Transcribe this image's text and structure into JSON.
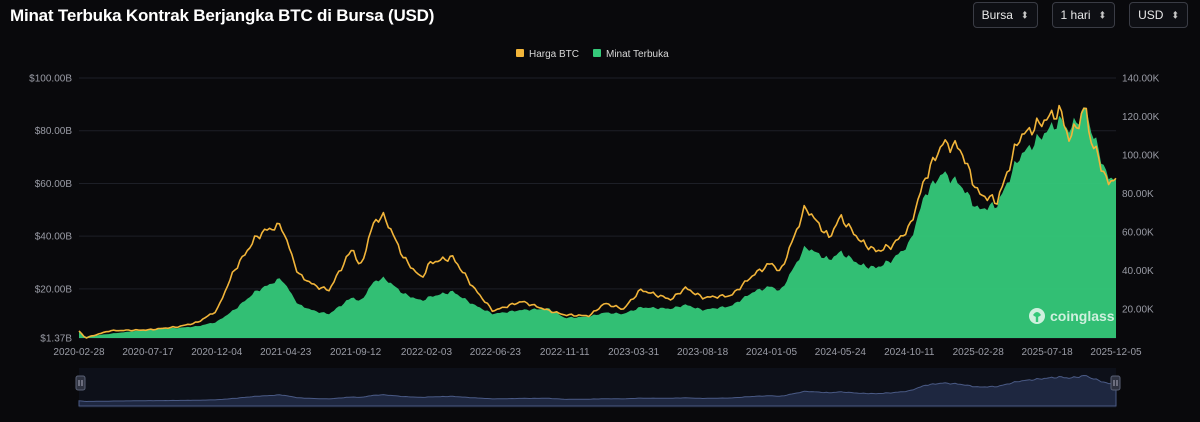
{
  "header": {
    "title": "Minat Terbuka Kontrak Berjangka BTC di Bursa (USD)",
    "controls": [
      {
        "label": "Bursa",
        "icon": "updown-chevron-icon"
      },
      {
        "label": "1 hari",
        "icon": "updown-chevron-icon"
      },
      {
        "label": "USD",
        "icon": "updown-chevron-icon"
      }
    ]
  },
  "watermark": {
    "text": "coinglass",
    "icon": "coinglass-logo-icon"
  },
  "colors": {
    "price": "#f2b53a",
    "oi": "#35c97a",
    "background": "#09090c",
    "navigator": "#1e2740"
  },
  "chart_data": {
    "type": "area",
    "title": "Minat Terbuka Kontrak Berjangka BTC di Bursa (USD)",
    "legend": [
      "Harga BTC",
      "Minat Terbuka"
    ],
    "legend_position": "top-center",
    "x_ticks": [
      "2020-02-28",
      "2020-07-17",
      "2020-12-04",
      "2021-04-23",
      "2021-09-12",
      "2022-02-03",
      "2022-06-23",
      "2022-11-11",
      "2023-03-31",
      "2023-08-18",
      "2024-01-05",
      "2024-05-24",
      "2024-10-11",
      "2025-02-28",
      "2025-07-18",
      "2025-12-05"
    ],
    "y_left_ticks": [
      "$1.37B",
      "$20.00B",
      "$40.00B",
      "$60.00B",
      "$80.00B",
      "$100.00B"
    ],
    "y_left_values": [
      1.37,
      20,
      40,
      60,
      80,
      100
    ],
    "y_left_range": [
      1.37,
      100
    ],
    "y_right_ticks": [
      "20.00K",
      "40.00K",
      "60.00K",
      "80.00K",
      "100.00K",
      "120.00K",
      "140.00K"
    ],
    "y_right_values": [
      20000,
      40000,
      60000,
      80000,
      100000,
      120000,
      140000
    ],
    "y_right_range": [
      5000,
      140000
    ],
    "grid": true,
    "series": [
      {
        "name": "Harga BTC",
        "axis": "right",
        "points": [
          [
            "2020-02-28",
            8700
          ],
          [
            "2020-03-12",
            5000
          ],
          [
            "2020-05-01",
            8800
          ],
          [
            "2020-07-17",
            9200
          ],
          [
            "2020-09-15",
            10800
          ],
          [
            "2020-10-25",
            13000
          ],
          [
            "2020-12-04",
            19200
          ],
          [
            "2021-01-08",
            40000
          ],
          [
            "2021-02-21",
            57000
          ],
          [
            "2021-03-14",
            61000
          ],
          [
            "2021-04-14",
            63500
          ],
          [
            "2021-05-19",
            38000
          ],
          [
            "2021-06-22",
            32000
          ],
          [
            "2021-07-20",
            29800
          ],
          [
            "2021-09-06",
            52000
          ],
          [
            "2021-09-21",
            41000
          ],
          [
            "2021-10-20",
            66000
          ],
          [
            "2021-11-10",
            68000
          ],
          [
            "2021-12-20",
            46000
          ],
          [
            "2022-01-24",
            36000
          ],
          [
            "2022-02-10",
            44000
          ],
          [
            "2022-03-28",
            47000
          ],
          [
            "2022-05-10",
            31000
          ],
          [
            "2022-06-18",
            19000
          ],
          [
            "2022-08-15",
            24000
          ],
          [
            "2022-10-10",
            19200
          ],
          [
            "2022-11-11",
            17000
          ],
          [
            "2022-12-31",
            16500
          ],
          [
            "2023-01-31",
            23000
          ],
          [
            "2023-03-10",
            20000
          ],
          [
            "2023-04-14",
            30000
          ],
          [
            "2023-06-15",
            25000
          ],
          [
            "2023-07-14",
            31000
          ],
          [
            "2023-08-18",
            26000
          ],
          [
            "2023-10-15",
            27000
          ],
          [
            "2023-11-30",
            38000
          ],
          [
            "2024-01-05",
            44000
          ],
          [
            "2024-01-23",
            39000
          ],
          [
            "2024-03-14",
            73000
          ],
          [
            "2024-05-01",
            57000
          ],
          [
            "2024-05-24",
            68000
          ],
          [
            "2024-07-05",
            55000
          ],
          [
            "2024-08-05",
            50000
          ],
          [
            "2024-09-06",
            53000
          ],
          [
            "2024-10-11",
            62000
          ],
          [
            "2024-11-12",
            88000
          ],
          [
            "2024-12-17",
            106000
          ],
          [
            "2025-01-21",
            104000
          ],
          [
            "2025-02-28",
            80000
          ],
          [
            "2025-04-08",
            76000
          ],
          [
            "2025-05-22",
            109000
          ],
          [
            "2025-07-18",
            119000
          ],
          [
            "2025-08-14",
            123000
          ],
          [
            "2025-09-01",
            108000
          ],
          [
            "2025-10-06",
            125000
          ],
          [
            "2025-10-11",
            111000
          ],
          [
            "2025-11-21",
            84000
          ],
          [
            "2025-12-05",
            90000
          ]
        ]
      },
      {
        "name": "Minat Terbuka",
        "axis": "left",
        "points": [
          [
            "2020-02-28",
            4.0
          ],
          [
            "2020-03-12",
            1.8
          ],
          [
            "2020-05-01",
            3.0
          ],
          [
            "2020-07-17",
            4.5
          ],
          [
            "2020-09-15",
            5.2
          ],
          [
            "2020-10-25",
            5.8
          ],
          [
            "2020-12-04",
            7.5
          ],
          [
            "2021-01-08",
            12.0
          ],
          [
            "2021-02-21",
            19.0
          ],
          [
            "2021-03-14",
            21.0
          ],
          [
            "2021-04-14",
            24.0
          ],
          [
            "2021-05-19",
            14.0
          ],
          [
            "2021-06-22",
            11.5
          ],
          [
            "2021-07-20",
            10.5
          ],
          [
            "2021-09-06",
            17.0
          ],
          [
            "2021-09-21",
            15.0
          ],
          [
            "2021-10-20",
            23.0
          ],
          [
            "2021-11-10",
            24.0
          ],
          [
            "2021-12-20",
            18.0
          ],
          [
            "2022-01-24",
            15.5
          ],
          [
            "2022-02-10",
            17.0
          ],
          [
            "2022-03-28",
            19.0
          ],
          [
            "2022-05-10",
            14.0
          ],
          [
            "2022-06-18",
            10.5
          ],
          [
            "2022-08-15",
            12.0
          ],
          [
            "2022-10-10",
            12.5
          ],
          [
            "2022-11-11",
            9.0
          ],
          [
            "2022-12-31",
            9.5
          ],
          [
            "2023-01-31",
            11.0
          ],
          [
            "2023-03-10",
            10.5
          ],
          [
            "2023-04-14",
            13.0
          ],
          [
            "2023-06-15",
            12.5
          ],
          [
            "2023-07-14",
            14.0
          ],
          [
            "2023-08-18",
            12.0
          ],
          [
            "2023-10-15",
            13.5
          ],
          [
            "2023-11-30",
            19.0
          ],
          [
            "2024-01-05",
            21.0
          ],
          [
            "2024-01-23",
            19.0
          ],
          [
            "2024-03-14",
            36.0
          ],
          [
            "2024-05-01",
            31.0
          ],
          [
            "2024-05-24",
            34.0
          ],
          [
            "2024-07-05",
            29.0
          ],
          [
            "2024-08-05",
            28.0
          ],
          [
            "2024-09-06",
            31.0
          ],
          [
            "2024-10-11",
            37.0
          ],
          [
            "2024-11-12",
            56.0
          ],
          [
            "2024-12-17",
            64.0
          ],
          [
            "2025-01-21",
            60.0
          ],
          [
            "2025-02-28",
            50.0
          ],
          [
            "2025-04-08",
            52.0
          ],
          [
            "2025-05-22",
            70.0
          ],
          [
            "2025-07-18",
            80.0
          ],
          [
            "2025-08-14",
            84.0
          ],
          [
            "2025-09-01",
            80.0
          ],
          [
            "2025-10-06",
            89.0
          ],
          [
            "2025-10-11",
            83.0
          ],
          [
            "2025-11-21",
            61.0
          ],
          [
            "2025-12-05",
            63.0
          ]
        ]
      }
    ]
  }
}
